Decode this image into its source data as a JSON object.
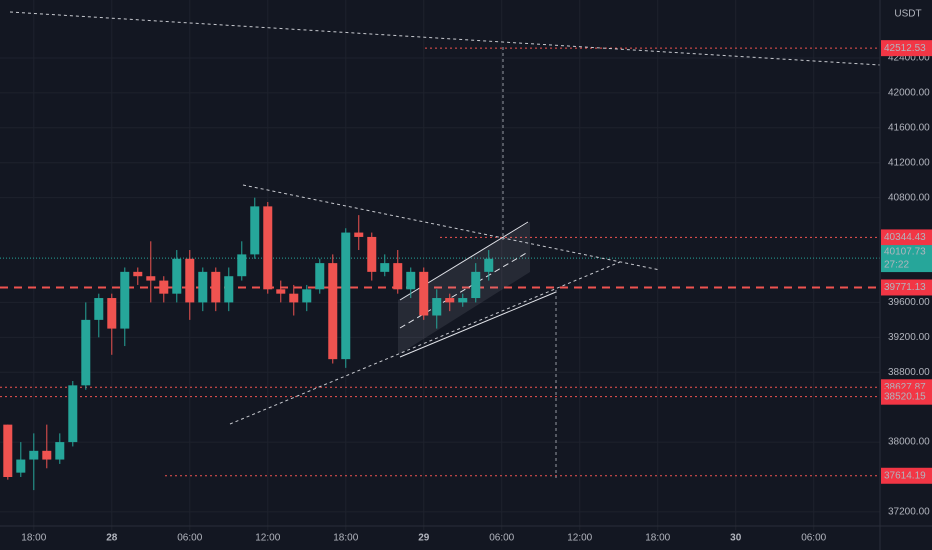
{
  "chart_data": {
    "type": "candlestick",
    "currency": "USDT",
    "x": [
      -2,
      -1,
      0,
      1,
      2,
      3,
      4,
      5,
      6,
      7,
      8,
      9,
      10,
      11,
      12,
      13,
      14,
      15,
      16,
      17,
      18,
      19,
      20,
      21,
      22,
      23,
      24,
      25,
      26,
      27,
      28,
      29,
      30,
      31,
      32,
      33,
      34,
      35
    ],
    "open": [
      38200,
      37650,
      37800,
      37900,
      37800,
      38000,
      38650,
      39400,
      39650,
      39300,
      39950,
      39900,
      39850,
      39700,
      40100,
      39600,
      39950,
      39600,
      39900,
      40150,
      40700,
      39750,
      39700,
      39600,
      39750,
      40050,
      38950,
      40400,
      40350,
      39950,
      40050,
      39750,
      39950,
      39450,
      39650,
      39600,
      39650,
      39950
    ],
    "high": [
      38200,
      38000,
      38100,
      38200,
      38100,
      38700,
      39600,
      39700,
      39700,
      40000,
      40000,
      40300,
      39900,
      40200,
      40200,
      40000,
      40000,
      40000,
      40300,
      40800,
      40750,
      39850,
      39800,
      39800,
      40100,
      40150,
      40450,
      40600,
      40400,
      40150,
      40200,
      40000,
      40000,
      39750,
      39700,
      39700,
      40050,
      40200
    ],
    "low": [
      37570,
      37600,
      37450,
      37700,
      37750,
      37950,
      38600,
      39200,
      39000,
      39100,
      39800,
      39600,
      39600,
      39600,
      39400,
      39500,
      39500,
      39500,
      39850,
      40100,
      39700,
      39600,
      39450,
      39500,
      39700,
      38900,
      38850,
      40200,
      39850,
      39900,
      39700,
      39650,
      39400,
      39300,
      39500,
      39550,
      39600,
      39850
    ],
    "close": [
      37600,
      37800,
      37900,
      37800,
      38000,
      38650,
      39400,
      39650,
      39300,
      39950,
      39900,
      39850,
      39700,
      40100,
      39600,
      39950,
      39600,
      39900,
      40150,
      40700,
      39750,
      39700,
      39600,
      39750,
      40050,
      38950,
      40400,
      40350,
      39950,
      40050,
      39750,
      39950,
      39450,
      39650,
      39600,
      39650,
      39950,
      40100
    ],
    "up_color": "#26a69a",
    "down_color": "#ef5350",
    "xlim": [
      -2.6,
      65.1
    ],
    "ylim": [
      36993,
      43064
    ],
    "xticks": [
      {
        "value": 0,
        "label": "18:00"
      },
      {
        "value": 6,
        "label": "28"
      },
      {
        "value": 12,
        "label": "06:00"
      },
      {
        "value": 18,
        "label": "12:00"
      },
      {
        "value": 24,
        "label": "18:00"
      },
      {
        "value": 30,
        "label": "29"
      },
      {
        "value": 36,
        "label": "06:00"
      },
      {
        "value": 42,
        "label": "12:00"
      },
      {
        "value": 48,
        "label": "18:00"
      },
      {
        "value": 54,
        "label": "30"
      },
      {
        "value": 60,
        "label": "06:00"
      }
    ],
    "yticks": [
      {
        "value": 42400,
        "label": "42400.00"
      },
      {
        "value": 42000,
        "label": "42000.00"
      },
      {
        "value": 41600,
        "label": "41600.00"
      },
      {
        "value": 41200,
        "label": "41200.00"
      },
      {
        "value": 40800,
        "label": "40800.00"
      },
      {
        "value": 39600,
        "label": "39600.00"
      },
      {
        "value": 39200,
        "label": "39200.00"
      },
      {
        "value": 38800,
        "label": "38800.00"
      },
      {
        "value": 38000,
        "label": "38000.00"
      },
      {
        "value": 37200,
        "label": "37200.00"
      }
    ],
    "levels": [
      {
        "value": 42512.53,
        "label": "42512.53"
      },
      {
        "value": 40344.43,
        "label": "40344.43"
      },
      {
        "value": 39771.13,
        "label": "39771.13"
      },
      {
        "value": 38627.87,
        "label": "38627.87"
      },
      {
        "value": 38520.15,
        "label": "38520.15"
      },
      {
        "value": 37614.19,
        "label": "37614.19"
      }
    ],
    "last_price": {
      "value": 40107.73,
      "label": "40107.73",
      "countdown": "27:22"
    }
  }
}
